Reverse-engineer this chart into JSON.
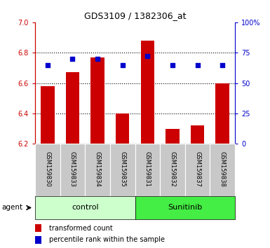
{
  "title": "GDS3109 / 1382306_at",
  "samples": [
    "GSM159830",
    "GSM159833",
    "GSM159834",
    "GSM159835",
    "GSM159831",
    "GSM159832",
    "GSM159837",
    "GSM159838"
  ],
  "groups": [
    "control",
    "control",
    "control",
    "control",
    "Sunitinib",
    "Sunitinib",
    "Sunitinib",
    "Sunitinib"
  ],
  "transformed_count": [
    6.58,
    6.67,
    6.77,
    6.4,
    6.88,
    6.3,
    6.32,
    6.6
  ],
  "percentile_rank": [
    65,
    70,
    70,
    65,
    72,
    65,
    65,
    65
  ],
  "left_ylim": [
    6.2,
    7.0
  ],
  "right_ylim": [
    0,
    100
  ],
  "left_yticks": [
    6.2,
    6.4,
    6.6,
    6.8,
    7.0
  ],
  "right_yticks": [
    0,
    25,
    50,
    75,
    100
  ],
  "right_yticklabels": [
    "0",
    "25",
    "50",
    "75",
    "100%"
  ],
  "bar_color": "#cc0000",
  "dot_color": "#0000cc",
  "bar_bottom": 6.2,
  "control_color_light": "#ccffcc",
  "sunitinib_color": "#44ee44",
  "agent_label": "agent",
  "control_label": "control",
  "sunitinib_label": "Sunitinib",
  "legend_bar_label": "transformed count",
  "legend_dot_label": "percentile rank within the sample",
  "left_axis_color": "#cc0000",
  "right_axis_color": "#0000cc",
  "tick_label_bg": "#c8c8c8",
  "grid_yticks": [
    6.4,
    6.6,
    6.8
  ]
}
